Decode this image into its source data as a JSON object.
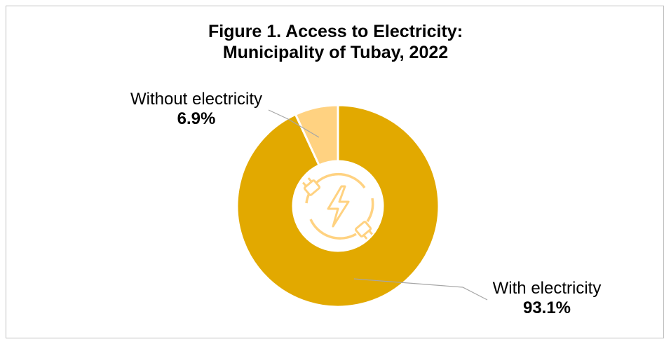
{
  "chart_data": {
    "type": "pie",
    "variant": "donut",
    "title_lines": [
      "Figure 1. Access to Electricity:",
      "Municipality of Tubay, 2022"
    ],
    "slices": [
      {
        "label": "With electricity",
        "value": 93.1,
        "display": "93.1%",
        "color": "#e2a900"
      },
      {
        "label": "Without electricity",
        "value": 6.9,
        "display": "6.9%",
        "color": "#ffd281"
      }
    ],
    "center_icon": "electricity-plug-icon",
    "legend": "none"
  }
}
